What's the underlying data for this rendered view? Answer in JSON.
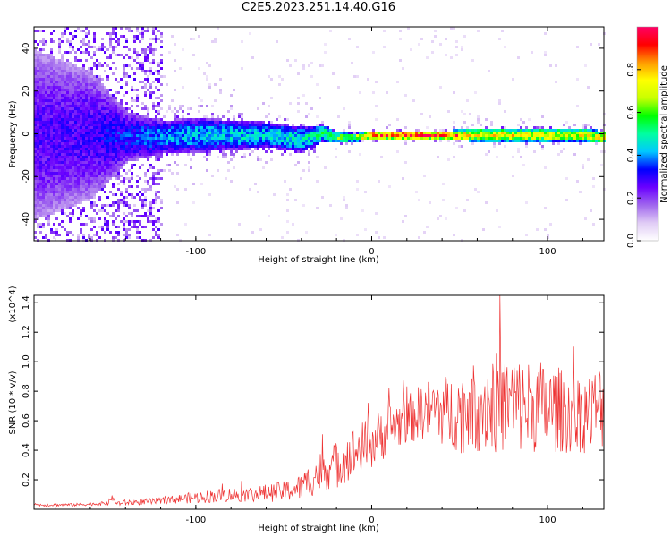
{
  "title": "C2E5.2023.251.14.40.G16",
  "chart_data": [
    {
      "type": "heatmap",
      "title": "C2E5.2023.251.14.40.G16",
      "xlabel": "Height of straight line (km)",
      "ylabel": "Frequency (Hz)",
      "xlim": [
        -192,
        132
      ],
      "ylim": [
        -50,
        50
      ],
      "x_ticks": [
        -100,
        0,
        100
      ],
      "x_tick_labels": [
        "-100",
        "0",
        "100"
      ],
      "y_ticks": [
        -40,
        -20,
        0,
        20,
        40
      ],
      "y_tick_labels": [
        "-40",
        "-20",
        "0",
        "20",
        "40"
      ],
      "colorbar": {
        "label": "Normalized spectral amplitude",
        "range": [
          0.0,
          1.0
        ],
        "ticks": [
          0.0,
          0.2,
          0.4,
          0.6,
          0.8
        ],
        "tick_labels": [
          "0.0",
          "0.2",
          "0.4",
          "0.6",
          "0.8"
        ],
        "colormap": [
          "#ffffff",
          "#e0ccf5",
          "#a066ee",
          "#6a00ff",
          "#0000ff",
          "#00c8ff",
          "#00ffa0",
          "#00ff00",
          "#c8ff00",
          "#ffff00",
          "#ff9900",
          "#ff0000",
          "#ff0066"
        ]
      },
      "band_profile": {
        "x": [
          -192,
          -160,
          -140,
          -120,
          -100,
          -80,
          -60,
          -40,
          -28,
          -22,
          -10,
          0,
          20,
          40,
          60,
          80,
          100,
          120,
          132
        ],
        "center_hz": [
          0,
          0,
          -1,
          -1,
          0,
          0,
          0,
          -2,
          1,
          -1,
          -1,
          0,
          0,
          0,
          0,
          0,
          0,
          0,
          -1
        ],
        "halfwidth_hz": [
          40,
          30,
          12,
          8,
          8,
          7,
          6,
          6,
          4,
          3,
          2,
          2,
          2,
          2,
          3,
          3,
          3,
          3,
          3
        ],
        "peak_amplitude": [
          0.28,
          0.3,
          0.36,
          0.42,
          0.45,
          0.47,
          0.48,
          0.5,
          0.55,
          0.62,
          0.7,
          0.95,
          0.98,
          0.98,
          0.8,
          0.78,
          0.78,
          0.75,
          0.75
        ]
      }
    },
    {
      "type": "line",
      "xlabel": "Height of straight line (km)",
      "ylabel": "SNR (10 * v/v)",
      "y_scale_label": "(x10^4)",
      "xlim": [
        -192,
        132
      ],
      "ylim": [
        0.0,
        1.45
      ],
      "x_ticks": [
        -100,
        0,
        100
      ],
      "x_tick_labels": [
        "-100",
        "0",
        "100"
      ],
      "y_ticks": [
        0.2,
        0.4,
        0.6,
        0.8,
        1.0,
        1.2,
        1.4
      ],
      "y_tick_labels": [
        "0.2",
        "0.4",
        "0.6",
        "0.8",
        "1.0",
        "1.2",
        "1.4"
      ],
      "line_color": "#ee3333",
      "series": [
        {
          "x": [
            -192,
            -180,
            -170,
            -160,
            -150,
            -148,
            -145,
            -140,
            -130,
            -120,
            -110,
            -100,
            -90,
            -80,
            -70,
            -60,
            -50,
            -40,
            -35,
            -30,
            -25,
            -20,
            -15,
            -10,
            -5,
            0,
            5,
            10,
            15,
            20,
            25,
            30,
            35,
            40,
            45,
            50,
            55,
            60,
            65,
            70,
            75,
            80,
            85,
            90,
            95,
            100,
            105,
            110,
            115,
            120,
            125,
            130
          ],
          "mean": [
            0.03,
            0.03,
            0.03,
            0.035,
            0.04,
            0.08,
            0.04,
            0.045,
            0.05,
            0.055,
            0.07,
            0.08,
            0.09,
            0.1,
            0.1,
            0.11,
            0.12,
            0.15,
            0.2,
            0.25,
            0.28,
            0.3,
            0.35,
            0.38,
            0.42,
            0.45,
            0.5,
            0.55,
            0.58,
            0.6,
            0.64,
            0.67,
            0.68,
            0.67,
            0.66,
            0.66,
            0.68,
            0.7,
            0.72,
            0.72,
            0.72,
            0.72,
            0.7,
            0.7,
            0.7,
            0.68,
            0.68,
            0.66,
            0.65,
            0.65,
            0.66,
            0.7
          ],
          "spread": [
            0.01,
            0.01,
            0.01,
            0.01,
            0.015,
            0.02,
            0.015,
            0.02,
            0.02,
            0.025,
            0.03,
            0.04,
            0.045,
            0.05,
            0.05,
            0.06,
            0.07,
            0.09,
            0.12,
            0.14,
            0.15,
            0.16,
            0.17,
            0.18,
            0.18,
            0.18,
            0.18,
            0.18,
            0.17,
            0.17,
            0.18,
            0.2,
            0.22,
            0.24,
            0.26,
            0.28,
            0.3,
            0.32,
            0.34,
            0.35,
            0.35,
            0.34,
            0.33,
            0.32,
            0.32,
            0.3,
            0.3,
            0.28,
            0.27,
            0.27,
            0.28,
            0.3
          ]
        }
      ]
    }
  ]
}
